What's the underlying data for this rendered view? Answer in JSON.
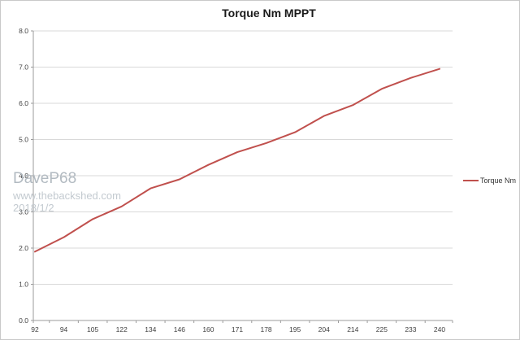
{
  "watermark": {
    "name": "DaveP68",
    "site": "www.thebackshed.com",
    "date": "2018/1/2"
  },
  "colors": {
    "series": "#c0504d",
    "gridline": "#d9d9d9",
    "axis": "#9b9b9b",
    "tick_label": "#404040",
    "title": "#1a1a1a",
    "border": "#c9c9c9",
    "watermark_name": "#b2bac1",
    "watermark_small": "#c3cad0"
  },
  "chart_data": {
    "type": "line",
    "title": "Torque Nm MPPT",
    "categories": [
      "92",
      "94",
      "105",
      "122",
      "134",
      "146",
      "160",
      "171",
      "178",
      "195",
      "204",
      "214",
      "225",
      "233",
      "240"
    ],
    "series": [
      {
        "name": "Torque Nm",
        "color": "#c0504d",
        "values": [
          1.9,
          2.3,
          2.8,
          3.15,
          3.65,
          3.9,
          4.3,
          4.65,
          4.9,
          5.2,
          5.65,
          5.95,
          6.4,
          6.7,
          6.95
        ]
      }
    ],
    "xlabel": "",
    "ylabel": "",
    "ylim": [
      0,
      8
    ],
    "ytick_step": 1,
    "ytick_decimals": 1,
    "grid": true,
    "legend_position": "right",
    "markers": false
  }
}
